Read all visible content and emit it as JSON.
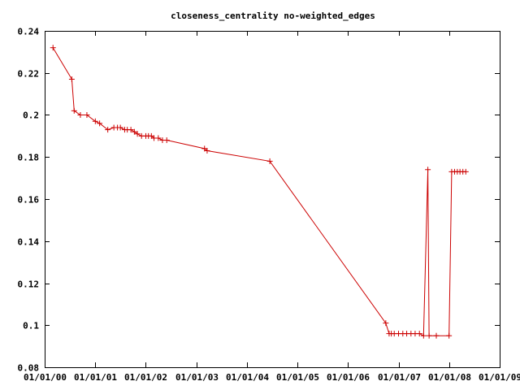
{
  "chart_data": {
    "type": "line",
    "title": "closeness_centrality no-weighted_edges",
    "xlabel": "",
    "ylabel": "",
    "x_axis_type": "date",
    "x_ticks": [
      "01/01/00",
      "01/01/01",
      "01/01/02",
      "01/01/03",
      "01/01/04",
      "01/01/05",
      "01/01/06",
      "01/01/07",
      "01/01/08",
      "01/01/09"
    ],
    "y_ticks": [
      "0.08",
      "0.1",
      "0.12",
      "0.14",
      "0.16",
      "0.18",
      "0.2",
      "0.22",
      "0.24"
    ],
    "xlim": [
      "2000-01-01",
      "2009-01-01"
    ],
    "ylim": [
      0.08,
      0.24
    ],
    "grid": false,
    "marker": "plus",
    "line_color": "#cc0000",
    "series": [
      {
        "x": [
          "2000-03-01",
          "2000-07-15",
          "2000-08-01",
          "2000-09-15",
          "2000-11-01",
          "2001-01-01",
          "2001-02-01",
          "2001-04-01",
          "2001-05-15",
          "2001-06-10",
          "2001-07-01",
          "2001-08-01",
          "2001-08-20",
          "2001-09-15",
          "2001-10-10",
          "2001-11-01",
          "2001-12-01",
          "2002-01-01",
          "2002-01-20",
          "2002-02-10",
          "2002-03-01",
          "2002-04-01",
          "2002-05-01",
          "2002-06-01",
          "2003-03-01",
          "2003-03-20",
          "2004-06-15",
          "2006-10-01",
          "2006-10-25",
          "2006-11-10",
          "2006-12-01",
          "2007-01-01",
          "2007-02-01",
          "2007-03-01",
          "2007-04-01",
          "2007-05-01",
          "2007-06-01",
          "2007-07-01",
          "2007-08-01",
          "2007-08-10",
          "2007-10-01",
          "2008-01-01",
          "2008-01-20",
          "2008-02-10",
          "2008-03-01",
          "2008-03-20",
          "2008-04-10",
          "2008-05-01"
        ],
        "y": [
          0.232,
          0.217,
          0.202,
          0.2,
          0.2,
          0.197,
          0.196,
          0.193,
          0.194,
          0.194,
          0.194,
          0.193,
          0.193,
          0.193,
          0.192,
          0.191,
          0.19,
          0.19,
          0.19,
          0.19,
          0.189,
          0.189,
          0.188,
          0.188,
          0.184,
          0.183,
          0.178,
          0.101,
          0.096,
          0.096,
          0.096,
          0.096,
          0.096,
          0.096,
          0.096,
          0.096,
          0.096,
          0.095,
          0.174,
          0.095,
          0.095,
          0.095,
          0.173,
          0.173,
          0.173,
          0.173,
          0.173,
          0.173
        ]
      }
    ]
  }
}
